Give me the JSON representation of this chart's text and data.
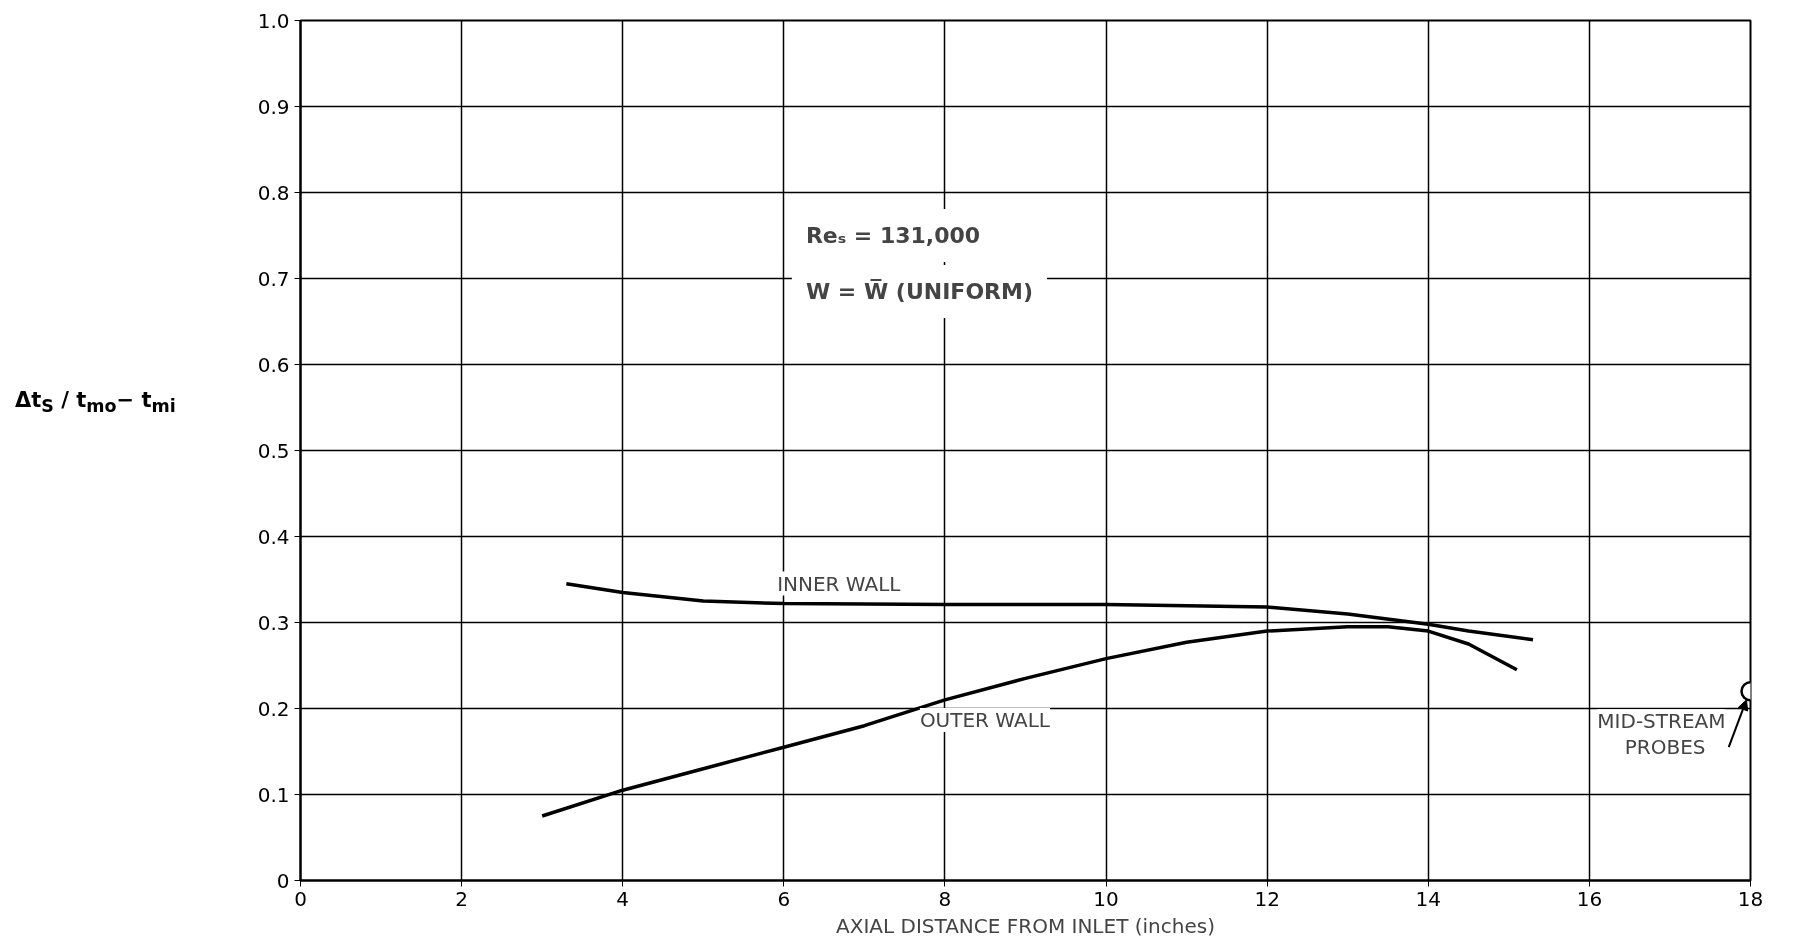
{
  "chart_data": {
    "type": "line",
    "xlabel": "AXIAL DISTANCE FROM INLET (inches)",
    "ylabel": "Δt$_{S}$ / t$_{mo}$− t$_{mi}$",
    "xlim": [
      0,
      18
    ],
    "xticks": [
      0,
      2,
      4,
      6,
      8,
      10,
      12,
      14,
      16,
      18
    ],
    "ylim": [
      0,
      1.0
    ],
    "yticks": [
      0,
      0.1,
      0.2,
      0.3,
      0.4,
      0.5,
      0.6,
      0.7,
      0.8,
      0.9,
      {
        "value": 1.0,
        "label": "1.0"
      }
    ],
    "grid": true,
    "line_style": "solid",
    "series": [
      {
        "name": "INNER WALL",
        "color": "#000000",
        "x": [
          3.3,
          4,
          5,
          6,
          8,
          10,
          12,
          13,
          14,
          14.5,
          15.3
        ],
        "values": [
          0.345,
          0.335,
          0.325,
          0.322,
          0.321,
          0.321,
          0.318,
          0.31,
          0.298,
          0.29,
          0.28
        ]
      },
      {
        "name": "OUTER WALL",
        "color": "#000000",
        "x": [
          3.0,
          4,
          5,
          6,
          7,
          8,
          9,
          10,
          11,
          12,
          13,
          13.5,
          14,
          14.5,
          15.1
        ],
        "values": [
          0.075,
          0.105,
          0.13,
          0.155,
          0.18,
          0.21,
          0.235,
          0.258,
          0.277,
          0.29,
          0.295,
          0.295,
          0.29,
          0.275,
          0.245
        ]
      },
      {
        "type": "scatter",
        "marker": "circle",
        "color": "#000000",
        "x": [
          18
        ],
        "values": [
          0.22
        ]
      }
    ],
    "annotations": [
      {
        "text": "MID-STREAM\nPROBES",
        "x": 18,
        "y": 0.22
      },
      "Reₛ = 131,000",
      "W = W̅ (UNIFORM)"
    ]
  }
}
